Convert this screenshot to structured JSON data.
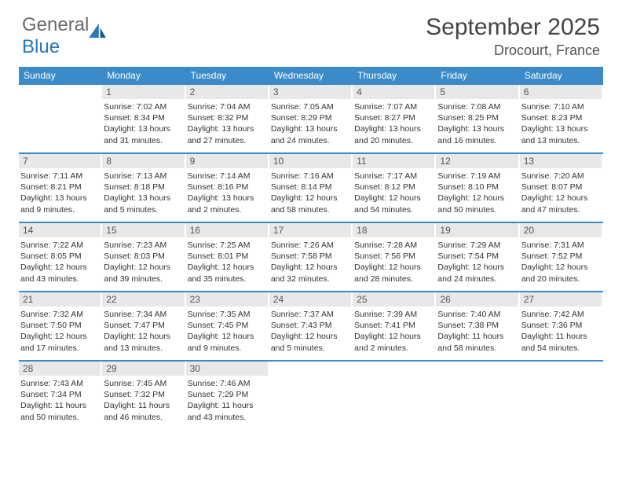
{
  "logo": {
    "textGray": "General",
    "textBlue": "Blue"
  },
  "title": "September 2025",
  "location": "Drocourt, France",
  "colors": {
    "headerBlue": "#3b8bc9",
    "cellDayBg": "#e8e8e8",
    "ruleBlue": "#3b8bc9",
    "textDark": "#333333"
  },
  "dayNames": [
    "Sunday",
    "Monday",
    "Tuesday",
    "Wednesday",
    "Thursday",
    "Friday",
    "Saturday"
  ],
  "weeks": [
    [
      {
        "n": "",
        "sr": "",
        "ss": "",
        "dl": ""
      },
      {
        "n": "1",
        "sr": "7:02 AM",
        "ss": "8:34 PM",
        "dl": "13 hours and 31 minutes."
      },
      {
        "n": "2",
        "sr": "7:04 AM",
        "ss": "8:32 PM",
        "dl": "13 hours and 27 minutes."
      },
      {
        "n": "3",
        "sr": "7:05 AM",
        "ss": "8:29 PM",
        "dl": "13 hours and 24 minutes."
      },
      {
        "n": "4",
        "sr": "7:07 AM",
        "ss": "8:27 PM",
        "dl": "13 hours and 20 minutes."
      },
      {
        "n": "5",
        "sr": "7:08 AM",
        "ss": "8:25 PM",
        "dl": "13 hours and 16 minutes."
      },
      {
        "n": "6",
        "sr": "7:10 AM",
        "ss": "8:23 PM",
        "dl": "13 hours and 13 minutes."
      }
    ],
    [
      {
        "n": "7",
        "sr": "7:11 AM",
        "ss": "8:21 PM",
        "dl": "13 hours and 9 minutes."
      },
      {
        "n": "8",
        "sr": "7:13 AM",
        "ss": "8:18 PM",
        "dl": "13 hours and 5 minutes."
      },
      {
        "n": "9",
        "sr": "7:14 AM",
        "ss": "8:16 PM",
        "dl": "13 hours and 2 minutes."
      },
      {
        "n": "10",
        "sr": "7:16 AM",
        "ss": "8:14 PM",
        "dl": "12 hours and 58 minutes."
      },
      {
        "n": "11",
        "sr": "7:17 AM",
        "ss": "8:12 PM",
        "dl": "12 hours and 54 minutes."
      },
      {
        "n": "12",
        "sr": "7:19 AM",
        "ss": "8:10 PM",
        "dl": "12 hours and 50 minutes."
      },
      {
        "n": "13",
        "sr": "7:20 AM",
        "ss": "8:07 PM",
        "dl": "12 hours and 47 minutes."
      }
    ],
    [
      {
        "n": "14",
        "sr": "7:22 AM",
        "ss": "8:05 PM",
        "dl": "12 hours and 43 minutes."
      },
      {
        "n": "15",
        "sr": "7:23 AM",
        "ss": "8:03 PM",
        "dl": "12 hours and 39 minutes."
      },
      {
        "n": "16",
        "sr": "7:25 AM",
        "ss": "8:01 PM",
        "dl": "12 hours and 35 minutes."
      },
      {
        "n": "17",
        "sr": "7:26 AM",
        "ss": "7:58 PM",
        "dl": "12 hours and 32 minutes."
      },
      {
        "n": "18",
        "sr": "7:28 AM",
        "ss": "7:56 PM",
        "dl": "12 hours and 28 minutes."
      },
      {
        "n": "19",
        "sr": "7:29 AM",
        "ss": "7:54 PM",
        "dl": "12 hours and 24 minutes."
      },
      {
        "n": "20",
        "sr": "7:31 AM",
        "ss": "7:52 PM",
        "dl": "12 hours and 20 minutes."
      }
    ],
    [
      {
        "n": "21",
        "sr": "7:32 AM",
        "ss": "7:50 PM",
        "dl": "12 hours and 17 minutes."
      },
      {
        "n": "22",
        "sr": "7:34 AM",
        "ss": "7:47 PM",
        "dl": "12 hours and 13 minutes."
      },
      {
        "n": "23",
        "sr": "7:35 AM",
        "ss": "7:45 PM",
        "dl": "12 hours and 9 minutes."
      },
      {
        "n": "24",
        "sr": "7:37 AM",
        "ss": "7:43 PM",
        "dl": "12 hours and 5 minutes."
      },
      {
        "n": "25",
        "sr": "7:39 AM",
        "ss": "7:41 PM",
        "dl": "12 hours and 2 minutes."
      },
      {
        "n": "26",
        "sr": "7:40 AM",
        "ss": "7:38 PM",
        "dl": "11 hours and 58 minutes."
      },
      {
        "n": "27",
        "sr": "7:42 AM",
        "ss": "7:36 PM",
        "dl": "11 hours and 54 minutes."
      }
    ],
    [
      {
        "n": "28",
        "sr": "7:43 AM",
        "ss": "7:34 PM",
        "dl": "11 hours and 50 minutes."
      },
      {
        "n": "29",
        "sr": "7:45 AM",
        "ss": "7:32 PM",
        "dl": "11 hours and 46 minutes."
      },
      {
        "n": "30",
        "sr": "7:46 AM",
        "ss": "7:29 PM",
        "dl": "11 hours and 43 minutes."
      },
      {
        "n": "",
        "sr": "",
        "ss": "",
        "dl": ""
      },
      {
        "n": "",
        "sr": "",
        "ss": "",
        "dl": ""
      },
      {
        "n": "",
        "sr": "",
        "ss": "",
        "dl": ""
      },
      {
        "n": "",
        "sr": "",
        "ss": "",
        "dl": ""
      }
    ]
  ],
  "labels": {
    "sunrise": "Sunrise:",
    "sunset": "Sunset:",
    "daylight": "Daylight:"
  }
}
